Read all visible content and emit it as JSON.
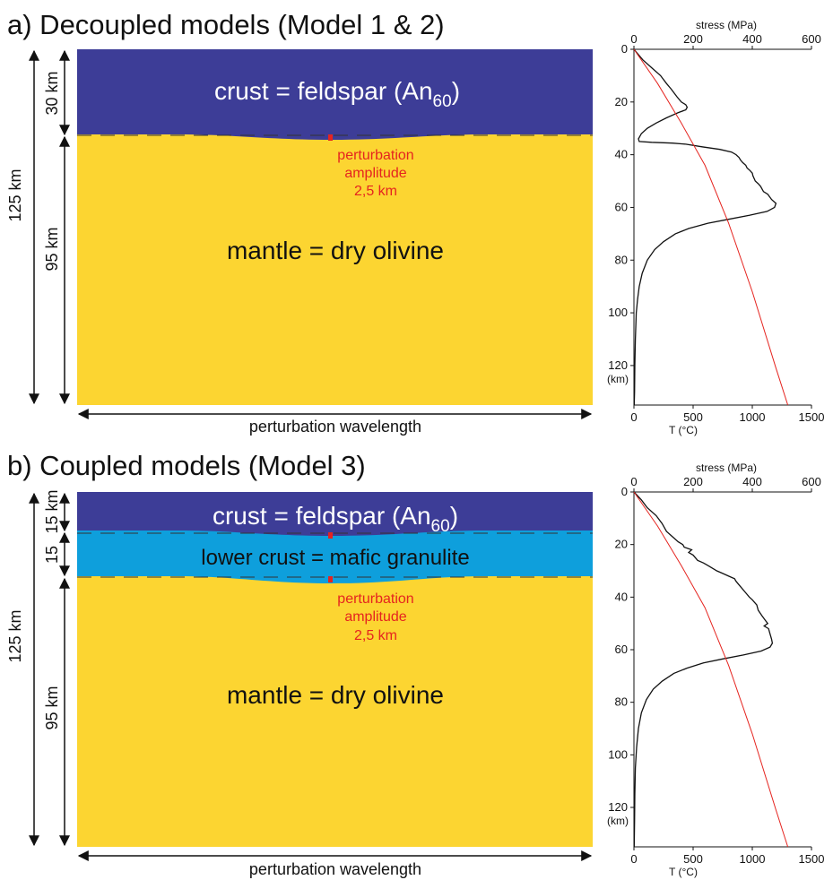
{
  "colors": {
    "crust": "#3d3d97",
    "lower_crust": "#0e9fdc",
    "mantle": "#fcd531",
    "perturbation": "#e5241f",
    "stress_curve": "#111111",
    "temperature_curve": "#e5241f"
  },
  "panel_a": {
    "title": "a) Decoupled models (Model 1 & 2)",
    "crust_label": "crust = feldspar (An",
    "crust_subscript": "60",
    "crust_close": ")",
    "mantle_label": "mantle = dry olivine",
    "perturbation_lines": [
      "perturbation",
      "amplitude",
      "2,5 km"
    ],
    "dims": {
      "total": "125 km",
      "crust": "30 km",
      "mantle": "95 km"
    },
    "wavelength_label": "perturbation wavelength"
  },
  "panel_b": {
    "title": "b) Coupled models (Model 3)",
    "crust_label": "crust = feldspar (An",
    "crust_subscript": "60",
    "crust_close": ")",
    "lower_crust_label": "lower crust = mafic granulite",
    "mantle_label": "mantle = dry olivine",
    "perturbation_lines": [
      "perturbation",
      "amplitude",
      "2,5 km"
    ],
    "dims": {
      "total": "125 km",
      "upper": "15 km",
      "lower": "15",
      "mantle": "95 km"
    },
    "wavelength_label": "perturbation wavelength"
  },
  "chart_data": [
    {
      "type": "line",
      "panel": "a",
      "top_axis": {
        "label": "stress (MPa)",
        "ticks": [
          "0",
          "200",
          "400",
          "600"
        ],
        "range": [
          0,
          600
        ]
      },
      "bottom_axis": {
        "label": "T (°C)",
        "ticks": [
          "0",
          "500",
          "1000",
          "1500"
        ],
        "range": [
          0,
          1500
        ]
      },
      "depth_axis": {
        "ticks": [
          "0",
          "20",
          "40",
          "60",
          "80",
          "100",
          "120"
        ],
        "unit_label": "(km)",
        "range": [
          0,
          135
        ],
        "reversed": true
      },
      "series": [
        {
          "values_axis": "stress",
          "points": [
            [
              0,
              0
            ],
            [
              30,
              4
            ],
            [
              60,
              7
            ],
            [
              90,
              10
            ],
            [
              110,
              13
            ],
            [
              125,
              15
            ],
            [
              145,
              18
            ],
            [
              160,
              20
            ],
            [
              175,
              21
            ],
            [
              180,
              22
            ],
            [
              175,
              23
            ],
            [
              150,
              24
            ],
            [
              110,
              26
            ],
            [
              75,
              28
            ],
            [
              45,
              30
            ],
            [
              25,
              32
            ],
            [
              15,
              34
            ],
            [
              18,
              35
            ],
            [
              60,
              35.3
            ],
            [
              130,
              35.6
            ],
            [
              175,
              36
            ],
            [
              230,
              37
            ],
            [
              290,
              38
            ],
            [
              330,
              39
            ],
            [
              345,
              40
            ],
            [
              355,
              41
            ],
            [
              360,
              42
            ],
            [
              368,
              43
            ],
            [
              378,
              44
            ],
            [
              382,
              45
            ],
            [
              392,
              46
            ],
            [
              400,
              47
            ],
            [
              402,
              48
            ],
            [
              410,
              50
            ],
            [
              420,
              51
            ],
            [
              428,
              52
            ],
            [
              438,
              54
            ],
            [
              452,
              55
            ],
            [
              465,
              57
            ],
            [
              480,
              58.5
            ],
            [
              475,
              60
            ],
            [
              450,
              61.5
            ],
            [
              390,
              63
            ],
            [
              320,
              64.5
            ],
            [
              250,
              66
            ],
            [
              185,
              68
            ],
            [
              140,
              70
            ],
            [
              100,
              73
            ],
            [
              70,
              76
            ],
            [
              45,
              80
            ],
            [
              28,
              85
            ],
            [
              18,
              90
            ],
            [
              12,
              95
            ],
            [
              8,
              100
            ],
            [
              5,
              110
            ],
            [
              3,
              120
            ],
            [
              2,
              130
            ],
            [
              1,
              135
            ]
          ]
        },
        {
          "values_axis": "temperature",
          "points": [
            [
              0,
              0
            ],
            [
              200,
              13
            ],
            [
              400,
              28
            ],
            [
              600,
              44
            ],
            [
              800,
              66
            ],
            [
              1000,
              92
            ],
            [
              1200,
              121
            ],
            [
              1300,
              135
            ]
          ]
        }
      ]
    },
    {
      "type": "line",
      "panel": "b",
      "top_axis": {
        "label": "stress (MPa)",
        "ticks": [
          "0",
          "200",
          "400",
          "600"
        ],
        "range": [
          0,
          600
        ]
      },
      "bottom_axis": {
        "label": "T (°C)",
        "ticks": [
          "0",
          "500",
          "1000",
          "1500"
        ],
        "range": [
          0,
          1500
        ]
      },
      "depth_axis": {
        "ticks": [
          "0",
          "20",
          "40",
          "60",
          "80",
          "100",
          "120"
        ],
        "unit_label": "(km)",
        "range": [
          0,
          135
        ],
        "reversed": true
      },
      "series": [
        {
          "values_axis": "stress",
          "points": [
            [
              0,
              0
            ],
            [
              25,
              3
            ],
            [
              45,
              6
            ],
            [
              75,
              9
            ],
            [
              95,
              12
            ],
            [
              110,
              15
            ],
            [
              130,
              17
            ],
            [
              150,
              19
            ],
            [
              165,
              20
            ],
            [
              170,
              21
            ],
            [
              195,
              22
            ],
            [
              185,
              23
            ],
            [
              200,
              24
            ],
            [
              215,
              26
            ],
            [
              235,
              27
            ],
            [
              250,
              28
            ],
            [
              280,
              30
            ],
            [
              300,
              31
            ],
            [
              320,
              32
            ],
            [
              340,
              33
            ],
            [
              345,
              34
            ],
            [
              360,
              36
            ],
            [
              375,
              38
            ],
            [
              390,
              40
            ],
            [
              400,
              41
            ],
            [
              415,
              43
            ],
            [
              420,
              45
            ],
            [
              432,
              47
            ],
            [
              445,
              49
            ],
            [
              452,
              50
            ],
            [
              440,
              51
            ],
            [
              455,
              52
            ],
            [
              460,
              54
            ],
            [
              465,
              56
            ],
            [
              468,
              57.5
            ],
            [
              460,
              59
            ],
            [
              430,
              60.5
            ],
            [
              370,
              62
            ],
            [
              300,
              63.5
            ],
            [
              235,
              65
            ],
            [
              180,
              67
            ],
            [
              135,
              69
            ],
            [
              95,
              72
            ],
            [
              65,
              75
            ],
            [
              42,
              79
            ],
            [
              25,
              84
            ],
            [
              15,
              90
            ],
            [
              9,
              97
            ],
            [
              5,
              105
            ],
            [
              3,
              115
            ],
            [
              2,
              125
            ],
            [
              1,
              135
            ]
          ]
        },
        {
          "values_axis": "temperature",
          "points": [
            [
              0,
              0
            ],
            [
              200,
              13
            ],
            [
              400,
              28
            ],
            [
              600,
              44
            ],
            [
              800,
              66
            ],
            [
              1000,
              92
            ],
            [
              1200,
              121
            ],
            [
              1300,
              135
            ]
          ]
        }
      ]
    }
  ]
}
